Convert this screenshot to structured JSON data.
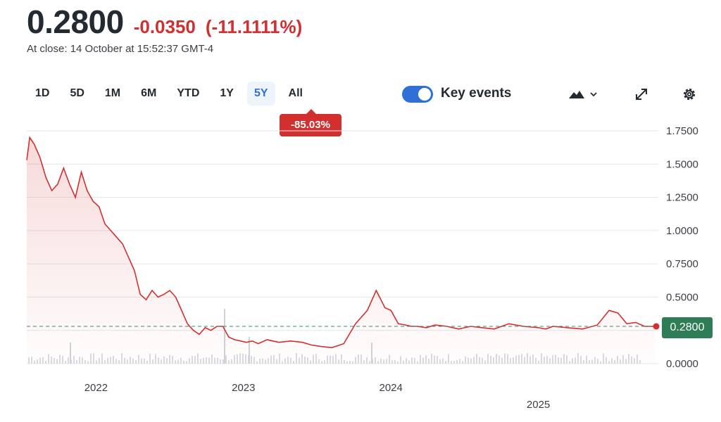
{
  "quote": {
    "price": "0.2800",
    "change": "-0.0350",
    "change_pct": "(-11.1111%)",
    "close_time": "At close: 14 October at 15:52:37 GMT-4"
  },
  "ranges": [
    "1D",
    "5D",
    "1M",
    "6M",
    "YTD",
    "1Y",
    "5Y",
    "All"
  ],
  "active_range": "5Y",
  "performance_badge": "-85.03%",
  "key_events": {
    "label": "Key events",
    "enabled": true
  },
  "icons": {
    "chart_type": "mountain-chart-icon",
    "expand": "expand-icon",
    "settings": "gear-icon"
  },
  "colors": {
    "line": "#d22f2f",
    "accent": "#2f6fd6",
    "current_price": "#2e7d57"
  },
  "current_price_label": "0.2800",
  "chart_data": {
    "type": "area",
    "y_ticks": [
      "1.7500",
      "1.5000",
      "1.2500",
      "1.0000",
      "0.7500",
      "0.5000",
      "0.2500",
      "0.0000"
    ],
    "ylim": [
      0,
      1.75
    ],
    "x_ticks": [
      "2022",
      "2023",
      "2024",
      "2025"
    ],
    "x_tick_positions": [
      2022.0,
      2023.0,
      2024.0,
      2025.0
    ],
    "xlim": [
      2021.53,
      2025.79
    ],
    "grid": true,
    "reference_line": 0.28,
    "series": [
      {
        "x": [
          2021.53,
          2021.55,
          2021.58,
          2021.62,
          2021.66,
          2021.7,
          2021.74,
          2021.78,
          2021.82,
          2021.86,
          2021.9,
          2021.94,
          2021.98,
          2022.02,
          2022.06,
          2022.1,
          2022.14,
          2022.18,
          2022.22,
          2022.26,
          2022.3,
          2022.34,
          2022.38,
          2022.42,
          2022.46,
          2022.5,
          2022.54,
          2022.58,
          2022.62,
          2022.66,
          2022.7,
          2022.74,
          2022.78,
          2022.82,
          2022.86,
          2022.9,
          2022.94,
          2022.98,
          2023.02,
          2023.06,
          2023.1,
          2023.16,
          2023.24,
          2023.32,
          2023.4,
          2023.46,
          2023.52,
          2023.6,
          2023.68,
          2023.76,
          2023.84,
          2023.9,
          2023.96,
          2024.0,
          2024.05,
          2024.1,
          2024.14,
          2024.18,
          2024.24,
          2024.3,
          2024.38,
          2024.46,
          2024.54,
          2024.62,
          2024.7,
          2024.8,
          2024.9,
          2025.0,
          2025.05,
          2025.1,
          2025.2,
          2025.3,
          2025.4,
          2025.48,
          2025.54,
          2025.6,
          2025.66,
          2025.72,
          2025.79
        ],
        "y": [
          1.53,
          1.7,
          1.65,
          1.55,
          1.4,
          1.3,
          1.35,
          1.47,
          1.35,
          1.25,
          1.44,
          1.3,
          1.22,
          1.18,
          1.05,
          1.0,
          0.95,
          0.9,
          0.8,
          0.7,
          0.52,
          0.48,
          0.55,
          0.5,
          0.52,
          0.55,
          0.5,
          0.4,
          0.3,
          0.25,
          0.22,
          0.27,
          0.25,
          0.28,
          0.28,
          0.2,
          0.18,
          0.17,
          0.16,
          0.17,
          0.15,
          0.18,
          0.16,
          0.17,
          0.16,
          0.14,
          0.13,
          0.12,
          0.15,
          0.3,
          0.4,
          0.55,
          0.42,
          0.4,
          0.3,
          0.29,
          0.28,
          0.28,
          0.27,
          0.29,
          0.28,
          0.26,
          0.28,
          0.27,
          0.26,
          0.3,
          0.28,
          0.27,
          0.26,
          0.28,
          0.27,
          0.26,
          0.29,
          0.4,
          0.38,
          0.3,
          0.31,
          0.28,
          0.28
        ]
      }
    ]
  }
}
